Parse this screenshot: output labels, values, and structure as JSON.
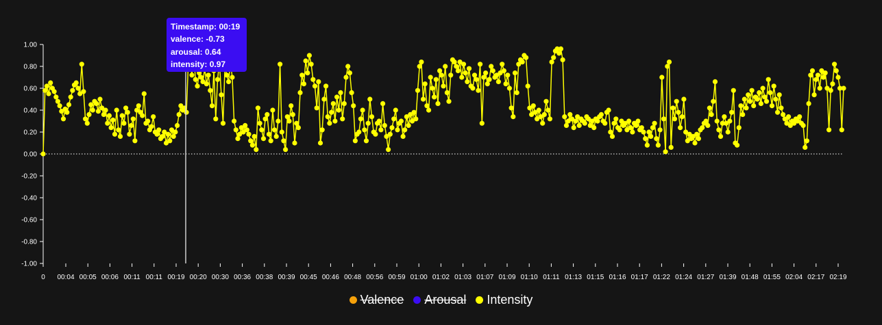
{
  "chart_data": {
    "type": "line",
    "ylim": [
      -1.0,
      1.0
    ],
    "yticks": [
      "1.00",
      "0.80",
      "0.60",
      "0.40",
      "0.20",
      "0.00",
      "-0.20",
      "-0.40",
      "-0.60",
      "-0.80",
      "-1.00"
    ],
    "xticks": [
      "0",
      "00:04",
      "00:05",
      "00:06",
      "00:11",
      "00:11",
      "00:19",
      "00:20",
      "00:30",
      "00:36",
      "00:38",
      "00:39",
      "00:45",
      "00:46",
      "00:48",
      "00:56",
      "00:59",
      "01:00",
      "01:02",
      "01:03",
      "01:07",
      "01:09",
      "01:10",
      "01:11",
      "01:13",
      "01:15",
      "01:16",
      "01:17",
      "01:22",
      "01:24",
      "01:27",
      "01:39",
      "01:48",
      "01:55",
      "02:04",
      "02:17",
      "02:19"
    ],
    "grid": false,
    "zero_line": "dotted",
    "legend_position": "bottom-center",
    "series": [
      {
        "name": "Valence",
        "color": "#f5a10a",
        "hidden": true
      },
      {
        "name": "Arousal",
        "color": "#3b0df2",
        "hidden": true
      },
      {
        "name": "Intensity",
        "color": "#ffff00",
        "hidden": false,
        "values": [
          0.0,
          0.58,
          0.62,
          0.55,
          0.65,
          0.6,
          0.57,
          0.52,
          0.48,
          0.44,
          0.39,
          0.32,
          0.41,
          0.38,
          0.45,
          0.52,
          0.58,
          0.63,
          0.65,
          0.6,
          0.55,
          0.82,
          0.57,
          0.32,
          0.28,
          0.36,
          0.45,
          0.4,
          0.48,
          0.46,
          0.39,
          0.5,
          0.42,
          0.36,
          0.4,
          0.28,
          0.35,
          0.24,
          0.31,
          0.18,
          0.4,
          0.22,
          0.16,
          0.35,
          0.28,
          0.42,
          0.38,
          0.18,
          0.26,
          0.32,
          0.12,
          0.4,
          0.44,
          0.38,
          0.35,
          0.55,
          0.28,
          0.3,
          0.22,
          0.25,
          0.34,
          0.2,
          0.18,
          0.22,
          0.14,
          0.16,
          0.2,
          0.1,
          0.18,
          0.12,
          0.22,
          0.16,
          0.2,
          0.26,
          0.36,
          0.44,
          0.4,
          0.42,
          0.38,
          0.8,
          0.85,
          0.72,
          0.9,
          0.68,
          0.62,
          0.74,
          0.7,
          0.66,
          0.78,
          0.64,
          0.72,
          0.58,
          0.44,
          0.76,
          0.32,
          0.68,
          0.84,
          0.54,
          0.28,
          0.8,
          0.72,
          0.66,
          0.84,
          0.7,
          0.3,
          0.22,
          0.14,
          0.18,
          0.24,
          0.2,
          0.26,
          0.22,
          0.18,
          0.12,
          0.08,
          0.16,
          0.04,
          0.42,
          0.28,
          0.22,
          0.14,
          0.32,
          0.36,
          0.18,
          0.12,
          0.4,
          0.22,
          0.16,
          0.3,
          0.82,
          0.2,
          0.12,
          0.04,
          0.34,
          0.3,
          0.44,
          0.36,
          0.1,
          0.28,
          0.24,
          0.56,
          0.72,
          0.64,
          0.85,
          0.74,
          0.9,
          0.82,
          0.68,
          0.62,
          0.42,
          0.66,
          0.1,
          0.22,
          0.5,
          0.62,
          0.34,
          0.28,
          0.38,
          0.46,
          0.3,
          0.52,
          0.4,
          0.56,
          0.32,
          0.46,
          0.7,
          0.8,
          0.74,
          0.56,
          0.44,
          0.12,
          0.18,
          0.2,
          0.32,
          0.4,
          0.22,
          0.12,
          0.28,
          0.5,
          0.34,
          0.2,
          0.18,
          0.28,
          0.3,
          0.22,
          0.46,
          0.26,
          0.16,
          0.04,
          0.18,
          0.24,
          0.32,
          0.4,
          0.22,
          0.28,
          0.3,
          0.16,
          0.22,
          0.34,
          0.26,
          0.36,
          0.3,
          0.38,
          0.32,
          0.58,
          0.8,
          0.84,
          0.5,
          0.64,
          0.44,
          0.4,
          0.7,
          0.6,
          0.52,
          0.68,
          0.46,
          0.76,
          0.72,
          0.62,
          0.8,
          0.56,
          0.48,
          0.72,
          0.86,
          0.84,
          0.8,
          0.76,
          0.84,
          0.7,
          0.82,
          0.74,
          0.66,
          0.78,
          0.62,
          0.6,
          0.72,
          0.68,
          0.58,
          0.82,
          0.28,
          0.7,
          0.74,
          0.64,
          0.68,
          0.8,
          0.76,
          0.7,
          0.72,
          0.66,
          0.74,
          0.82,
          0.76,
          0.64,
          0.72,
          0.6,
          0.42,
          0.34,
          0.74,
          0.56,
          0.82,
          0.86,
          0.84,
          0.9,
          0.88,
          0.62,
          0.42,
          0.36,
          0.44,
          0.38,
          0.32,
          0.4,
          0.34,
          0.28,
          0.36,
          0.48,
          0.4,
          0.32,
          0.84,
          0.88,
          0.94,
          0.96,
          0.92,
          0.96,
          0.86,
          0.34,
          0.26,
          0.3,
          0.36,
          0.32,
          0.24,
          0.3,
          0.34,
          0.26,
          0.32,
          0.3,
          0.28,
          0.34,
          0.32,
          0.26,
          0.3,
          0.24,
          0.32,
          0.3,
          0.34,
          0.36,
          0.3,
          0.28,
          0.38,
          0.4,
          0.2,
          0.16,
          0.28,
          0.32,
          0.24,
          0.22,
          0.3,
          0.26,
          0.28,
          0.22,
          0.3,
          0.24,
          0.2,
          0.28,
          0.26,
          0.3,
          0.22,
          0.24,
          0.2,
          0.14,
          0.08,
          0.2,
          0.16,
          0.24,
          0.28,
          0.14,
          0.08,
          0.22,
          0.7,
          0.32,
          0.02,
          0.8,
          0.84,
          0.06,
          0.42,
          0.32,
          0.48,
          0.38,
          0.24,
          0.34,
          0.5,
          0.2,
          0.12,
          0.18,
          0.14,
          0.16,
          0.1,
          0.18,
          0.14,
          0.22,
          0.24,
          0.28,
          0.3,
          0.26,
          0.42,
          0.36,
          0.48,
          0.66,
          0.3,
          0.22,
          0.16,
          0.28,
          0.34,
          0.28,
          0.2,
          0.3,
          0.38,
          0.58,
          0.1,
          0.08,
          0.24,
          0.44,
          0.36,
          0.5,
          0.42,
          0.54,
          0.48,
          0.58,
          0.44,
          0.52,
          0.5,
          0.56,
          0.46,
          0.6,
          0.52,
          0.48,
          0.68,
          0.56,
          0.44,
          0.62,
          0.5,
          0.38,
          0.54,
          0.42,
          0.36,
          0.32,
          0.28,
          0.34,
          0.26,
          0.3,
          0.28,
          0.32,
          0.3,
          0.34,
          0.28,
          0.26,
          0.06,
          0.12,
          0.46,
          0.72,
          0.76,
          0.54,
          0.68,
          0.72,
          0.6,
          0.76,
          0.7,
          0.74,
          0.6,
          0.22,
          0.58,
          0.64,
          0.82,
          0.76,
          0.7,
          0.6,
          0.22,
          0.6
        ]
      }
    ]
  },
  "tooltip": {
    "timestamp_label": "Timestamp:",
    "timestamp_value": "00:19",
    "valence_label": "valence:",
    "valence_value": "-0.73",
    "arousal_label": "arousal:",
    "arousal_value": "0.64",
    "intensity_label": "intensity:",
    "intensity_value": "0.97"
  },
  "legend": [
    {
      "label": "Valence",
      "color": "#f5a10a",
      "hidden": true
    },
    {
      "label": "Arousal",
      "color": "#3b0df2",
      "hidden": true
    },
    {
      "label": "Intensity",
      "color": "#ffff00",
      "hidden": false
    }
  ]
}
